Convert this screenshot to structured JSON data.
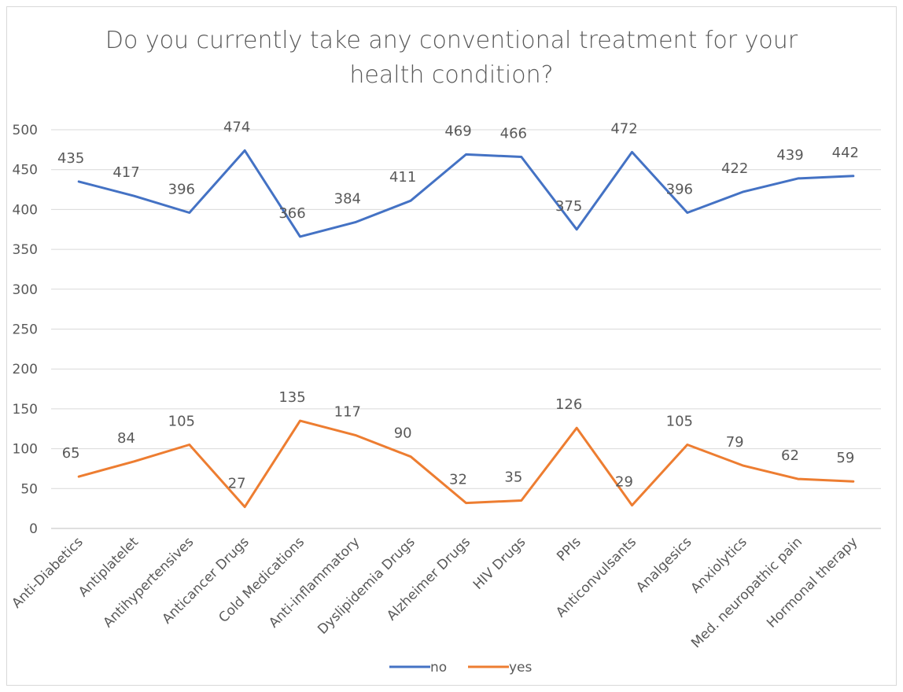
{
  "chart_data": {
    "type": "line",
    "title_line1": "Do you currently take any conventional treatment for your",
    "title_line2": "health condition?",
    "categories": [
      "Anti-Diabetics",
      "Antiplatelet",
      "Antihypertensives",
      "Anticancer Drugs",
      "Cold Medications",
      "Anti-inflammatory",
      "Dyslipidemia Drugs",
      "Alzheimer Drugs",
      "HIV Drugs",
      "PPIs",
      "Anticonvulsants",
      "Analgesics",
      "Anxiolytics",
      "Med. neuropathic pain",
      "Hormonal therapy"
    ],
    "series": [
      {
        "name": "no",
        "color": "#4472C4",
        "values": [
          435,
          417,
          396,
          474,
          366,
          384,
          411,
          469,
          466,
          375,
          472,
          396,
          422,
          439,
          442
        ]
      },
      {
        "name": "yes",
        "color": "#ED7D31",
        "values": [
          65,
          84,
          105,
          27,
          135,
          117,
          90,
          32,
          35,
          126,
          29,
          105,
          79,
          62,
          59
        ]
      }
    ],
    "yticks": [
      "0",
      "50",
      "100",
      "150",
      "200",
      "250",
      "300",
      "350",
      "400",
      "450",
      "500"
    ],
    "ylim": [
      0,
      500
    ],
    "grid": true,
    "legend_position": "bottom"
  }
}
